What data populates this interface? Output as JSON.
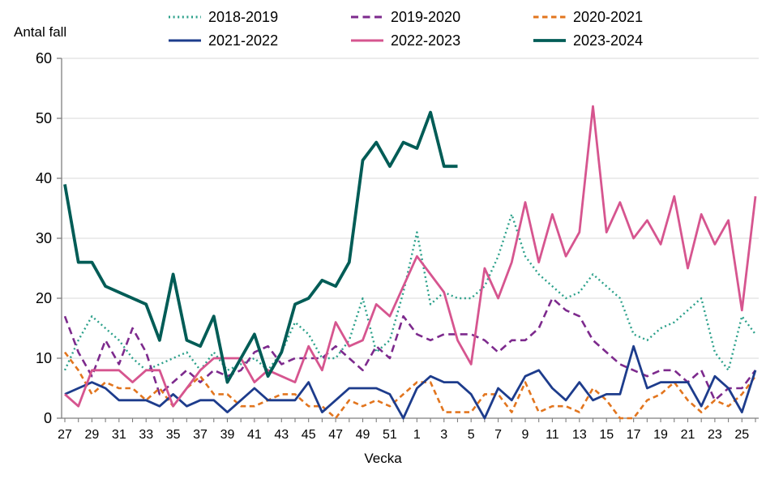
{
  "chart_data": {
    "type": "line",
    "title": "",
    "y_axis_title": "Antal fall",
    "x_axis_title": "Vecka",
    "ylim": [
      0,
      60
    ],
    "yticks": [
      0,
      10,
      20,
      30,
      40,
      50,
      60
    ],
    "x_label_every": 2,
    "grid": "horizontal",
    "legend_position": "top",
    "colors": {
      "grid": "#d9d9d9",
      "axis": "#7f7f7f",
      "text": "#000000",
      "background": "#ffffff"
    },
    "categories": [
      "27",
      "28",
      "29",
      "30",
      "31",
      "32",
      "33",
      "34",
      "35",
      "36",
      "37",
      "38",
      "39",
      "40",
      "41",
      "42",
      "43",
      "44",
      "45",
      "46",
      "47",
      "48",
      "49",
      "50",
      "51",
      "52",
      "1",
      "2",
      "3",
      "4",
      "5",
      "6",
      "7",
      "8",
      "9",
      "10",
      "11",
      "12",
      "13",
      "14",
      "15",
      "16",
      "17",
      "18",
      "19",
      "20",
      "21",
      "22",
      "23",
      "24",
      "25",
      "26"
    ],
    "series": [
      {
        "name": "2018-2019",
        "color": "#2ba08a",
        "style": "dotted",
        "values": [
          8,
          13,
          17,
          15,
          13,
          10,
          8,
          9,
          10,
          11,
          8,
          11,
          8,
          9,
          10,
          8,
          11,
          16,
          14,
          10,
          10,
          13,
          20,
          11,
          13,
          21,
          31,
          19,
          21,
          20,
          20,
          22,
          27,
          34,
          27,
          24,
          22,
          20,
          21,
          24,
          22,
          20,
          14,
          13,
          15,
          16,
          18,
          20,
          11,
          8,
          17,
          14
        ]
      },
      {
        "name": "2019-2020",
        "color": "#7d2a8d",
        "style": "dashed",
        "values": [
          17,
          11,
          7,
          13,
          9,
          15,
          11,
          4,
          6,
          8,
          6,
          8,
          7,
          8,
          11,
          12,
          9,
          10,
          10,
          10,
          12,
          10,
          8,
          12,
          10,
          17,
          14,
          13,
          14,
          14,
          14,
          13,
          11,
          13,
          13,
          15,
          20,
          18,
          17,
          13,
          11,
          9,
          8,
          7,
          8,
          8,
          6,
          8,
          3,
          5,
          5,
          8
        ]
      },
      {
        "name": "2020-2021",
        "color": "#e2751e",
        "style": "dashed-short",
        "values": [
          11,
          8,
          4,
          6,
          5,
          5,
          3,
          5,
          2,
          5,
          7,
          4,
          4,
          2,
          2,
          3,
          4,
          4,
          2,
          2,
          0,
          3,
          2,
          3,
          2,
          4,
          6,
          6,
          1,
          1,
          1,
          4,
          4,
          1,
          6,
          1,
          2,
          2,
          1,
          5,
          3,
          0,
          0,
          3,
          4,
          6,
          3,
          1,
          3,
          2,
          4,
          7
        ]
      },
      {
        "name": "2021-2022",
        "color": "#1d3c8c",
        "style": "solid",
        "values": [
          4,
          5,
          6,
          5,
          3,
          3,
          3,
          2,
          4,
          2,
          3,
          3,
          1,
          3,
          5,
          3,
          3,
          3,
          6,
          1,
          3,
          5,
          5,
          5,
          4,
          0,
          5,
          7,
          6,
          6,
          4,
          0,
          5,
          3,
          7,
          8,
          5,
          3,
          6,
          3,
          4,
          4,
          12,
          5,
          6,
          6,
          6,
          2,
          7,
          5,
          1,
          8
        ]
      },
      {
        "name": "2022-2023",
        "color": "#d6558f",
        "style": "solid",
        "values": [
          4,
          2,
          8,
          8,
          8,
          6,
          8,
          8,
          2,
          5,
          8,
          10,
          10,
          10,
          6,
          8,
          7,
          6,
          12,
          8,
          16,
          12,
          13,
          19,
          17,
          22,
          27,
          24,
          21,
          13,
          9,
          25,
          20,
          26,
          36,
          26,
          34,
          27,
          31,
          52,
          31,
          36,
          30,
          33,
          29,
          37,
          25,
          34,
          29,
          33,
          18,
          37
        ]
      },
      {
        "name": "2023-2024",
        "color": "#005c56",
        "style": "solid-thick",
        "values": [
          39,
          26,
          26,
          22,
          21,
          20,
          19,
          13,
          24,
          13,
          12,
          17,
          6,
          10,
          14,
          7,
          11,
          19,
          20,
          23,
          22,
          26,
          43,
          46,
          42,
          46,
          45,
          51,
          42,
          42,
          null,
          null,
          null,
          null,
          null,
          null,
          null,
          null,
          null,
          null,
          null,
          null,
          null,
          null,
          null,
          null,
          null,
          null,
          null,
          null,
          null,
          null
        ]
      }
    ]
  }
}
